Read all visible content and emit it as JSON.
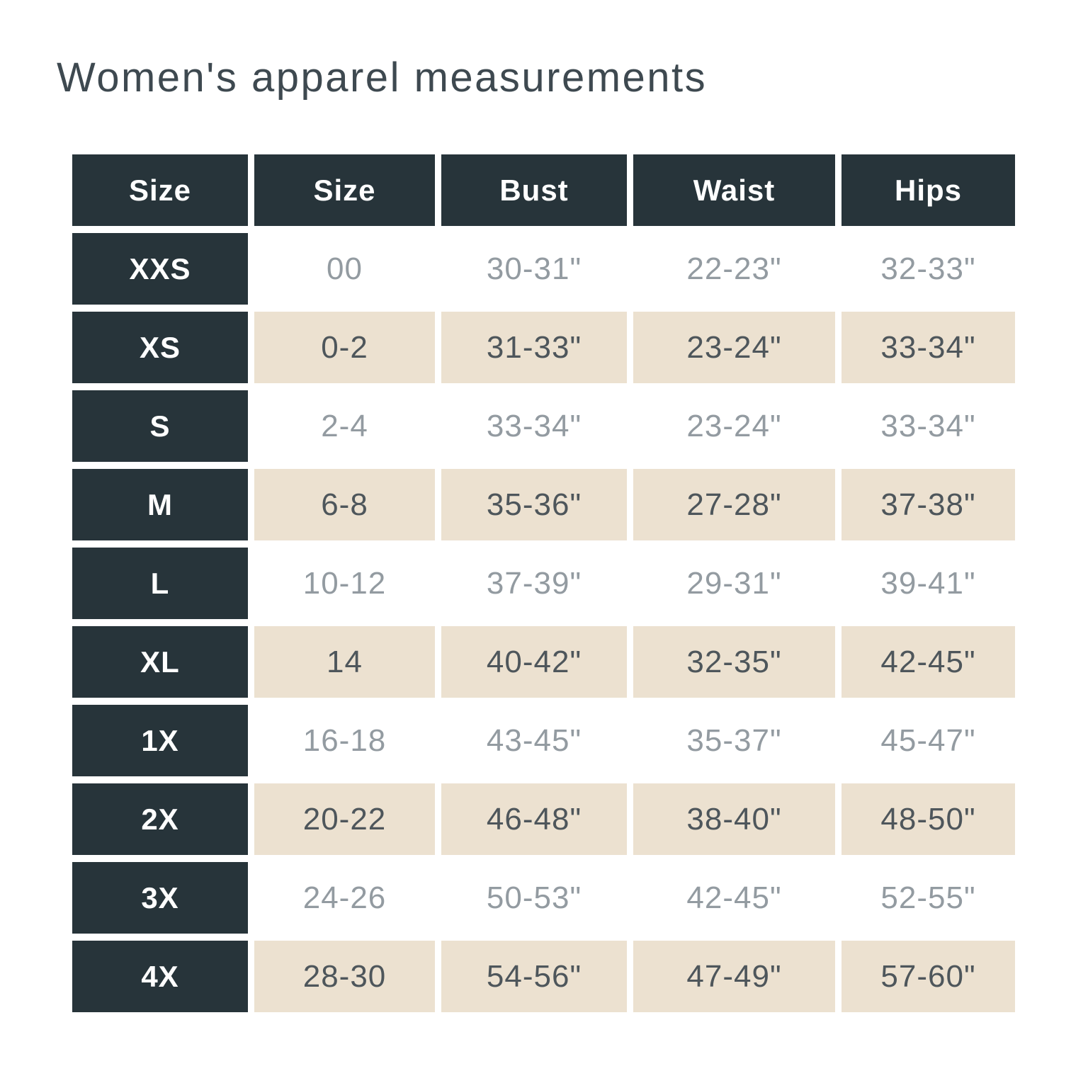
{
  "page": {
    "title": "Women's apparel measurements"
  },
  "colors": {
    "header_bg": "#27343a",
    "header_text": "#ffffff",
    "shade_row_bg": "#ece1d0",
    "light_row_text": "#939ba1",
    "shade_row_text": "#4e565b",
    "title_text": "#3e4950",
    "page_bg": "#ffffff"
  },
  "table": {
    "headers": [
      "Size",
      "Size",
      "Bust",
      "Waist",
      "Hips"
    ],
    "rows": [
      [
        "XXS",
        "00",
        "30-31\"",
        "22-23\"",
        "32-33\""
      ],
      [
        "XS",
        "0-2",
        "31-33\"",
        "23-24\"",
        "33-34\""
      ],
      [
        "S",
        "2-4",
        "33-34\"",
        "23-24\"",
        "33-34\""
      ],
      [
        "M",
        "6-8",
        "35-36\"",
        "27-28\"",
        "37-38\""
      ],
      [
        "L",
        "10-12",
        "37-39\"",
        "29-31\"",
        "39-41\""
      ],
      [
        "XL",
        "14",
        "40-42\"",
        "32-35\"",
        "42-45\""
      ],
      [
        "1X",
        "16-18",
        "43-45\"",
        "35-37\"",
        "45-47\""
      ],
      [
        "2X",
        "20-22",
        "46-48\"",
        "38-40\"",
        "48-50\""
      ],
      [
        "3X",
        "24-26",
        "50-53\"",
        "42-45\"",
        "52-55\""
      ],
      [
        "4X",
        "28-30",
        "54-56\"",
        "47-49\"",
        "57-60\""
      ]
    ]
  },
  "chart_data": {
    "type": "table",
    "title": "Women's apparel measurements",
    "columns": [
      "Size",
      "Size",
      "Bust",
      "Waist",
      "Hips"
    ],
    "rows": [
      [
        "XXS",
        "00",
        "30-31\"",
        "22-23\"",
        "32-33\""
      ],
      [
        "XS",
        "0-2",
        "31-33\"",
        "23-24\"",
        "33-34\""
      ],
      [
        "S",
        "2-4",
        "33-34\"",
        "23-24\"",
        "33-34\""
      ],
      [
        "M",
        "6-8",
        "35-36\"",
        "27-28\"",
        "37-38\""
      ],
      [
        "L",
        "10-12",
        "37-39\"",
        "29-31\"",
        "39-41\""
      ],
      [
        "XL",
        "14",
        "40-42\"",
        "32-35\"",
        "42-45\""
      ],
      [
        "1X",
        "16-18",
        "43-45\"",
        "35-37\"",
        "45-47\""
      ],
      [
        "2X",
        "20-22",
        "46-48\"",
        "38-40\"",
        "48-50\""
      ],
      [
        "3X",
        "24-26",
        "50-53\"",
        "42-45\"",
        "52-55\""
      ],
      [
        "4X",
        "28-30",
        "54-56\"",
        "47-49\"",
        "57-60\""
      ]
    ],
    "layout": {
      "row_shading": "alternating white and cream starting with white on first data row",
      "header_style": "dark slate background, white bold text",
      "first_column_style": "dark slate background, white bold text"
    }
  }
}
